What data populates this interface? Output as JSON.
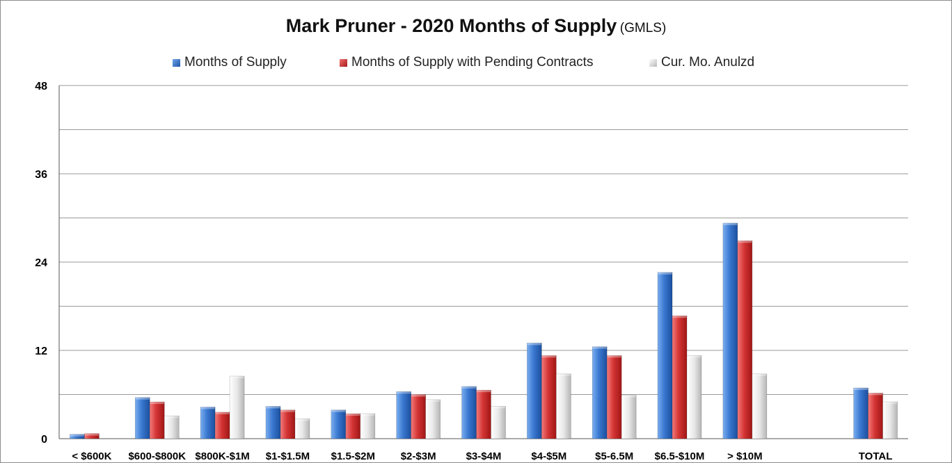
{
  "chart_data": {
    "type": "bar",
    "title": "Mark Pruner -  2020 Months of Supply",
    "subtitle": "(GMLS)",
    "xlabel": "",
    "ylabel": "",
    "ylim": [
      0,
      48
    ],
    "yticks": [
      0,
      12,
      24,
      36,
      48
    ],
    "grid": true,
    "legend_position": "top",
    "categories": [
      "< $600K",
      "$600-$800K",
      "$800K-$1M",
      "$1-$1.5M",
      "$1.5-$2M",
      "$2-$3M",
      "$3-$4M",
      "$4-$5M",
      "$5-6.5M",
      "$6.5-$10M",
      "> $10M",
      "",
      "TOTAL"
    ],
    "series": [
      {
        "name": "Months of Supply",
        "color": "#2f6fc8",
        "values": [
          0.6,
          5.6,
          4.3,
          4.4,
          3.9,
          6.4,
          7.1,
          13.0,
          12.5,
          22.6,
          29.3,
          null,
          6.9
        ]
      },
      {
        "name": "Months of Supply with Pending Contracts",
        "color": "#cc2a2a",
        "values": [
          0.7,
          5.0,
          3.6,
          3.9,
          3.4,
          6.0,
          6.6,
          11.3,
          11.3,
          16.7,
          26.9,
          null,
          6.2
        ]
      },
      {
        "name": "Cur. Mo. Anulzd",
        "color": "#dcdcdc",
        "values": [
          0,
          3.1,
          8.5,
          2.7,
          3.4,
          5.3,
          4.4,
          8.8,
          5.9,
          11.3,
          8.8,
          null,
          5.0
        ]
      }
    ]
  }
}
